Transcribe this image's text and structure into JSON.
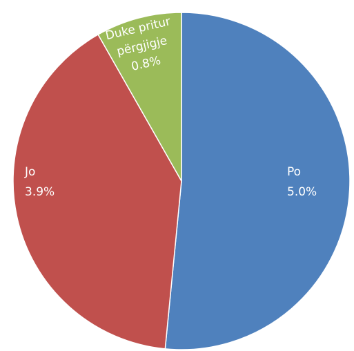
{
  "chart_data": {
    "type": "pie",
    "title": "",
    "slices": [
      {
        "label": "Po",
        "value_label": "5.0%",
        "value": 5.0,
        "color": "#4F81BD"
      },
      {
        "label": "Jo",
        "value_label": "3.9%",
        "value": 3.9,
        "color": "#C0504D"
      },
      {
        "label": "Duke pritur\npërgjigje",
        "value_label": "0.8%",
        "value": 0.8,
        "color": "#9BBB59"
      }
    ],
    "start_angle": "top",
    "direction": "clockwise"
  }
}
